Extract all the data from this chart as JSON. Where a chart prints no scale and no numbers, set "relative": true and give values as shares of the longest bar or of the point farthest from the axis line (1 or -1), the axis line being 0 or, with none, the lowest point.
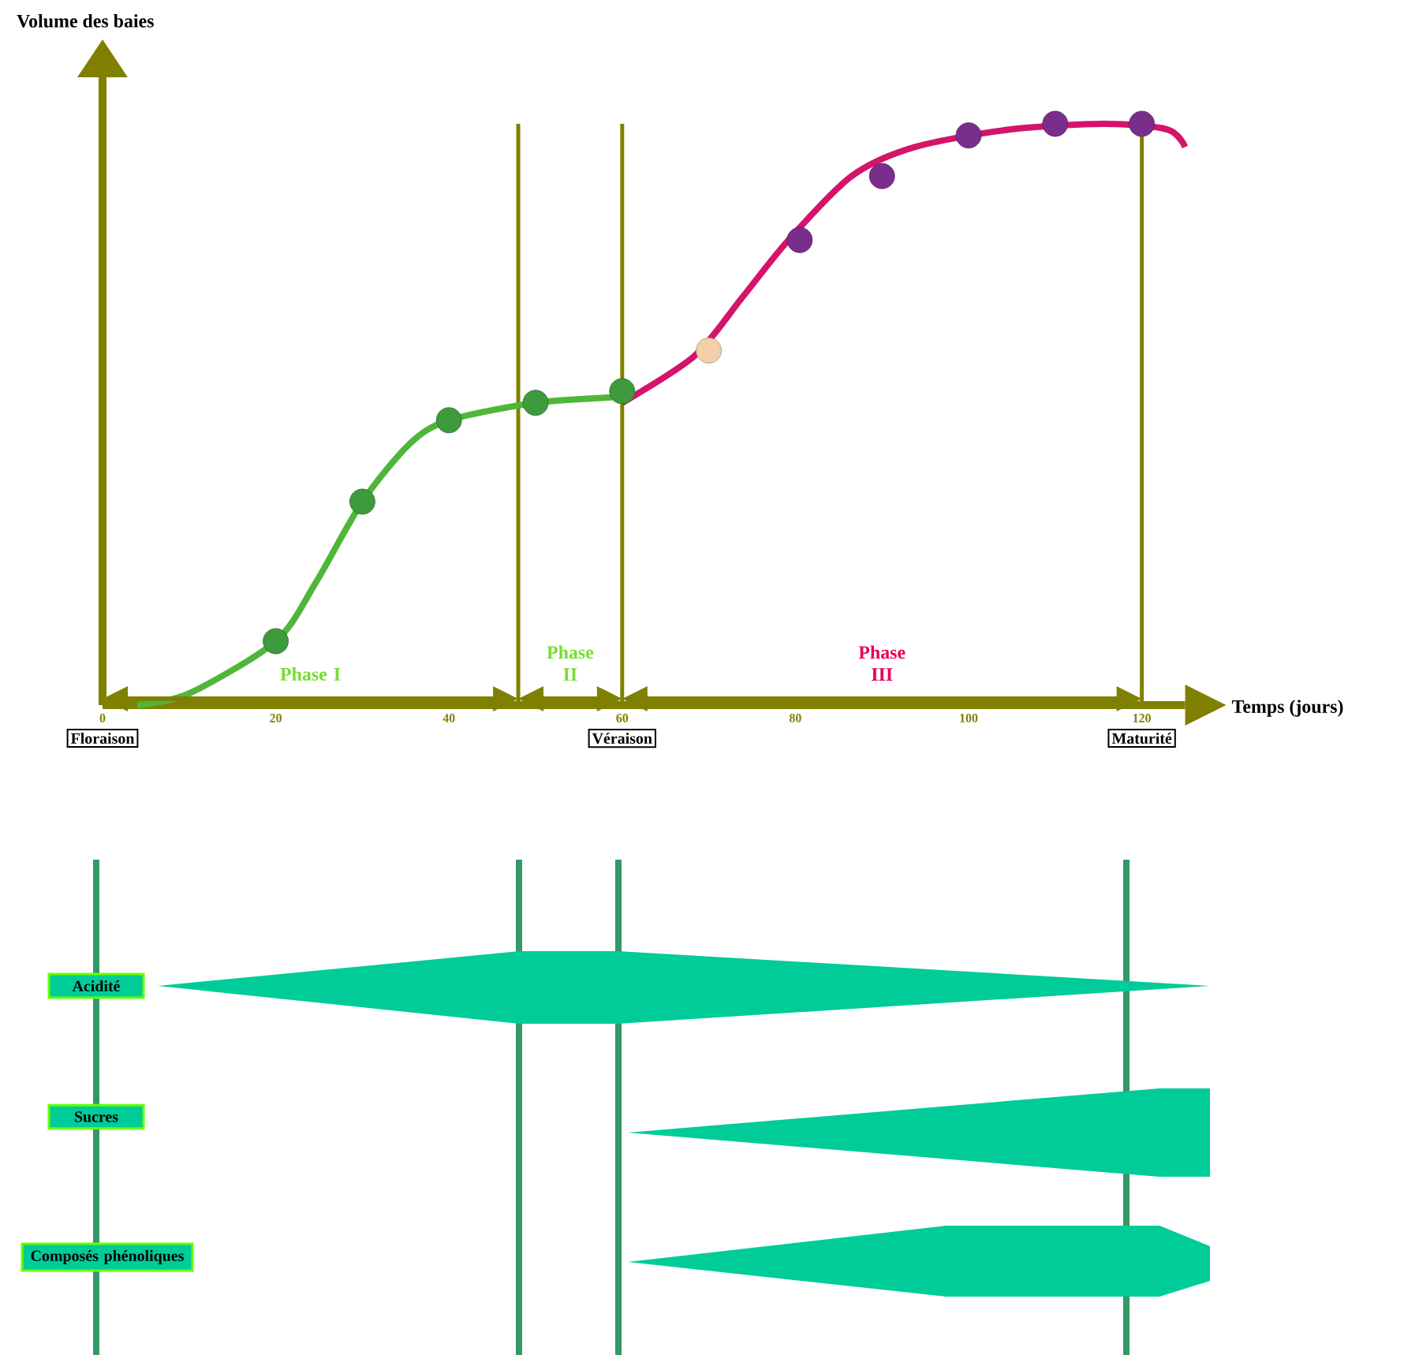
{
  "chart_data": [
    {
      "type": "line",
      "ylabel": "Volume des baies",
      "xlabel": "Temps (jours)",
      "relative": true,
      "xlim": [
        0,
        125
      ],
      "xticks": [
        0,
        20,
        40,
        60,
        80,
        100,
        120
      ],
      "series": [
        {
          "type": "line",
          "color": "#4fb63a",
          "marker": "none",
          "line_style": "solid",
          "x": [
            4,
            10,
            20,
            24.6,
            30,
            35.5,
            40,
            50,
            60
          ],
          "values": [
            0,
            0.02,
            0.11,
            0.21,
            0.35,
            0.45,
            0.49,
            0.52,
            0.53
          ]
        },
        {
          "type": "line",
          "color": "#d4146a",
          "marker": "none",
          "line_style": "solid",
          "x": [
            60,
            68.3,
            73.8,
            79.2,
            86.5,
            93.8,
            104.7,
            115.7,
            123,
            125
          ],
          "values": [
            0.52,
            0.6,
            0.7,
            0.8,
            0.91,
            0.96,
            0.99,
            1.0,
            0.99,
            0.96
          ]
        },
        {
          "type": "scatter",
          "color": "#3d9a3d",
          "marker": "circle",
          "x": [
            20,
            30,
            40,
            50,
            60
          ],
          "values": [
            0.11,
            0.35,
            0.49,
            0.52,
            0.54
          ]
        },
        {
          "type": "scatter",
          "color": "#f3cfaa",
          "marker": "circle",
          "x": [
            70
          ],
          "values": [
            0.61
          ]
        },
        {
          "type": "scatter",
          "color": "#7a2e8c",
          "marker": "circle",
          "x": [
            80.5,
            90,
            100,
            110,
            120
          ],
          "values": [
            0.8,
            0.91,
            0.98,
            1.0,
            1.0
          ]
        }
      ],
      "ref_lines": [
        {
          "axis": "x",
          "value": 0,
          "label": "Floraison",
          "color": "#808000"
        },
        {
          "axis": "x",
          "value": 48,
          "color": "#808000"
        },
        {
          "axis": "x",
          "value": 60,
          "label": "Véraison",
          "color": "#808000"
        },
        {
          "axis": "x",
          "value": 120,
          "label": "Maturité",
          "color": "#808000"
        }
      ],
      "annotations": [
        "Phase I",
        "Phase II",
        "Phase III"
      ]
    },
    {
      "type": "other",
      "annotations": [
        "Acidité",
        "Sucres",
        "Composés phénoliques"
      ]
    }
  ]
}
